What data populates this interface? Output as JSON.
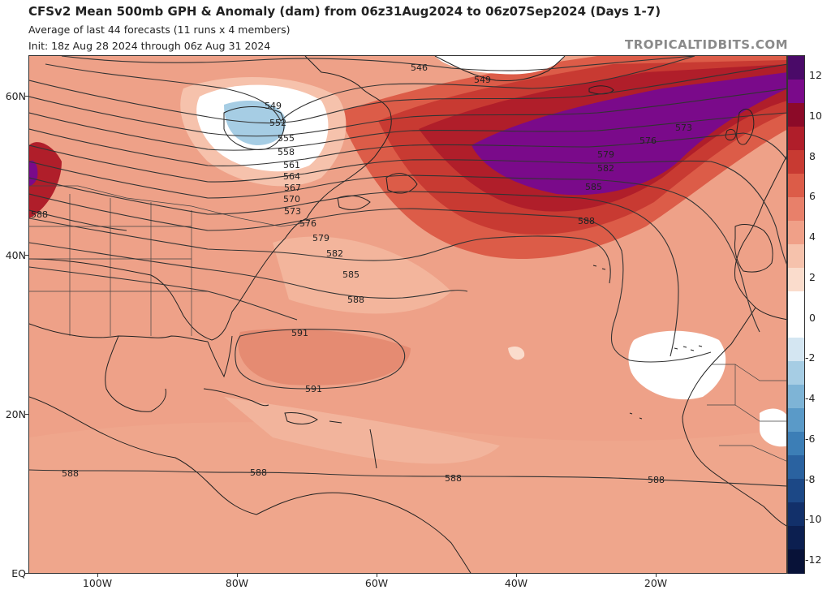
{
  "header": {
    "title": "CFSv2 Mean 500mb GPH & Anomaly (dam) from 06z31Aug2024 to 06z07Sep2024 (Days 1-7)",
    "subtitle1": "Average of last 44 forecasts (11 runs x 4 members)",
    "subtitle2": "Init: 18z Aug 28 2024 through 06z Aug 31 2024",
    "brand": "TROPICALTIDBITS.COM"
  },
  "lat_labels": [
    "60N",
    "40N",
    "20N",
    "EQ"
  ],
  "lon_labels": [
    "100W",
    "80W",
    "60W",
    "40W",
    "20W"
  ],
  "contour_labels": [
    "546",
    "549",
    "549",
    "552",
    "555",
    "558",
    "561",
    "564",
    "567",
    "570",
    "573",
    "576",
    "579",
    "582",
    "585",
    "588",
    "573",
    "576",
    "579",
    "582",
    "585",
    "588",
    "588",
    "591",
    "591",
    "588",
    "588",
    "588",
    "588"
  ],
  "colorbar": {
    "labels": [
      "12",
      "10",
      "8",
      "6",
      "4",
      "2",
      "0",
      "-2",
      "-4",
      "-6",
      "-8",
      "-10",
      "-12"
    ],
    "colors": [
      "#4a0a68",
      "#7a0a8a",
      "#8c0a28",
      "#b01e2a",
      "#c83a32",
      "#dc5c48",
      "#e8806a",
      "#f0a088",
      "#f6c2ac",
      "#fadccc",
      "#ffffff",
      "#ffffff",
      "#d4e6f2",
      "#a6cde4",
      "#7eb4d6",
      "#5a9ac8",
      "#3c7eb6",
      "#2a62a0",
      "#1c4886",
      "#12306a",
      "#0c1f50",
      "#081238"
    ],
    "color_meaning": "anomaly dam, top=+12 bottom=-12"
  },
  "colors": {
    "ocean_base": "#eea188",
    "land_base": "#e89a80",
    "contour": "#333333",
    "border": "#222222"
  }
}
